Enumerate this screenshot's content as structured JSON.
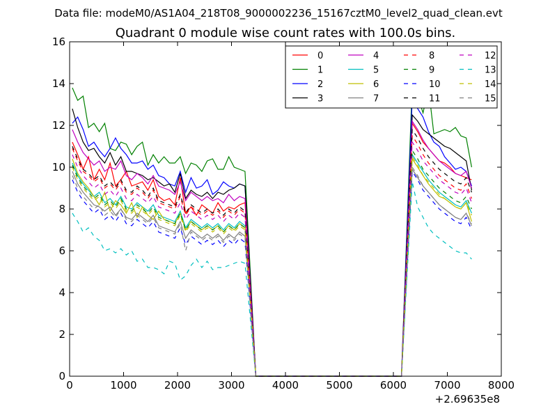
{
  "chart_data": {
    "type": "line",
    "suptitle": "Data file: modeM0/AS1A04_218T08_9000002236_15167cztM0_level2_quad_clean.evt",
    "title": "Quadrant 0 module wise count rates with 100.0s bins.",
    "xlabel": "",
    "ylabel": "",
    "xlim": [
      0,
      8000
    ],
    "ylim": [
      0,
      16
    ],
    "x_offset_label": "+2.69635e8",
    "xticks": [
      0,
      1000,
      2000,
      3000,
      4000,
      5000,
      6000,
      7000,
      8000
    ],
    "xtick_labels": [
      "0",
      "1000",
      "2000",
      "3000",
      "4000",
      "5000",
      "6000",
      "7000",
      "8000"
    ],
    "yticks": [
      0,
      2,
      4,
      6,
      8,
      10,
      12,
      14,
      16
    ],
    "ytick_labels": [
      "0",
      "2",
      "4",
      "6",
      "8",
      "10",
      "12",
      "14",
      "16"
    ],
    "legend_position": "top-right",
    "legend_columns": 4,
    "x_segment1_start": 50,
    "x_step": 100,
    "gap_x": [
      3450,
      6150
    ],
    "x_segment2_start": 6350,
    "series": [
      {
        "name": "0",
        "color": "#ff0000",
        "dashed": false,
        "seg1": [
          11.2,
          10.6,
          9.9,
          10.5,
          9.4,
          9.9,
          9.4,
          10.2,
          9.1,
          9.4,
          9.8,
          9.1,
          9.2,
          9.3,
          8.9,
          9.4,
          8.6,
          8.4,
          8.5,
          8.2,
          9.5,
          7.8,
          8.1,
          7.7,
          8.2,
          8.0,
          7.8,
          8.3,
          7.9,
          8.1,
          8.0,
          8.2,
          8.3
        ],
        "seg2": [
          12.1,
          11.7,
          11.2,
          10.9,
          10.6,
          10.3,
          10.2,
          10.0,
          9.7,
          9.6,
          9.5,
          9.4
        ]
      },
      {
        "name": "1",
        "color": "#008000",
        "dashed": false,
        "seg1": [
          13.8,
          13.2,
          13.4,
          11.9,
          12.1,
          11.7,
          12.1,
          10.9,
          10.8,
          11.2,
          11.1,
          10.6,
          11.0,
          11.2,
          10.1,
          10.6,
          10.2,
          10.5,
          10.2,
          10.2,
          10.5,
          9.7,
          10.2,
          10.1,
          9.8,
          10.3,
          10.4,
          9.9,
          9.9,
          10.5,
          10.0,
          9.9,
          9.8
        ],
        "seg2": [
          14.0,
          13.4,
          12.6,
          13.8,
          11.6,
          11.7,
          11.8,
          11.7,
          11.9,
          11.5,
          11.4,
          10.0
        ]
      },
      {
        "name": "2",
        "color": "#0000ff",
        "dashed": false,
        "seg1": [
          12.1,
          12.4,
          11.8,
          11.0,
          11.2,
          10.8,
          10.5,
          10.9,
          11.4,
          10.9,
          10.6,
          10.2,
          10.2,
          10.3,
          9.9,
          10.1,
          9.6,
          9.5,
          9.2,
          9.1,
          9.8,
          8.8,
          9.5,
          9.0,
          9.1,
          9.4,
          8.7,
          8.9,
          9.3,
          9.1,
          9.0,
          9.2,
          9.1
        ],
        "seg2": [
          13.3,
          12.8,
          12.4,
          11.7,
          11.2,
          11.0,
          10.5,
          10.2,
          9.9,
          10.0,
          9.8,
          9.1
        ]
      },
      {
        "name": "3",
        "color": "#000000",
        "dashed": false,
        "seg1": [
          12.8,
          11.9,
          11.2,
          10.8,
          10.9,
          10.5,
          10.2,
          10.7,
          10.1,
          10.5,
          9.8,
          9.8,
          9.7,
          9.6,
          9.4,
          9.5,
          9.3,
          9.1,
          9.2,
          8.8,
          9.7,
          8.5,
          8.9,
          8.7,
          8.6,
          8.8,
          8.5,
          8.8,
          8.7,
          8.9,
          9.0,
          9.2,
          9.1
        ],
        "seg2": [
          12.5,
          12.2,
          11.8,
          11.6,
          11.4,
          11.2,
          11.0,
          10.9,
          10.7,
          10.5,
          10.3,
          8.9
        ]
      },
      {
        "name": "4",
        "color": "#bf00bf",
        "dashed": false,
        "seg1": [
          11.8,
          11.2,
          10.7,
          10.4,
          10.1,
          10.3,
          9.8,
          10.0,
          9.9,
          10.3,
          9.6,
          9.4,
          9.7,
          9.5,
          9.2,
          9.6,
          9.1,
          9.0,
          8.9,
          8.7,
          9.3,
          8.4,
          8.8,
          8.6,
          8.4,
          8.6,
          8.4,
          8.5,
          8.3,
          8.7,
          8.4,
          8.6,
          8.5
        ],
        "seg2": [
          12.2,
          11.8,
          11.3,
          10.9,
          10.6,
          10.3,
          10.1,
          9.9,
          9.7,
          9.6,
          9.8,
          9.0
        ]
      },
      {
        "name": "5",
        "color": "#00bfbf",
        "dashed": false,
        "seg1": [
          10.2,
          9.6,
          9.2,
          8.9,
          8.6,
          8.8,
          8.3,
          8.5,
          8.2,
          8.6,
          8.1,
          8.0,
          8.3,
          8.1,
          7.9,
          8.2,
          7.7,
          7.6,
          7.5,
          7.4,
          7.9,
          7.1,
          7.5,
          7.3,
          7.1,
          7.3,
          7.1,
          7.3,
          7.0,
          7.3,
          7.1,
          7.4,
          7.2
        ],
        "seg2": [
          10.6,
          10.2,
          9.8,
          9.4,
          9.1,
          8.8,
          8.6,
          8.4,
          8.2,
          8.1,
          8.4,
          7.8
        ]
      },
      {
        "name": "6",
        "color": "#bfbf00",
        "dashed": false,
        "seg1": [
          10.4,
          9.7,
          9.3,
          9.0,
          8.6,
          8.2,
          8.8,
          7.9,
          8.4,
          8.2,
          7.8,
          8.3,
          7.6,
          8.1,
          7.7,
          7.5,
          7.9,
          7.5,
          7.4,
          7.3,
          7.8,
          7.0,
          7.4,
          7.2,
          7.0,
          7.2,
          7.0,
          7.2,
          6.9,
          7.2,
          7.0,
          7.3,
          7.1
        ],
        "seg2": [
          10.4,
          10.0,
          9.6,
          9.2,
          8.9,
          8.6,
          8.5,
          8.3,
          8.1,
          8.0,
          8.3,
          7.4
        ]
      },
      {
        "name": "7",
        "color": "#808080",
        "dashed": false,
        "seg1": [
          9.8,
          9.2,
          8.8,
          8.5,
          8.2,
          8.1,
          7.9,
          8.1,
          7.7,
          8.0,
          7.6,
          7.5,
          7.8,
          7.6,
          7.4,
          7.7,
          7.2,
          7.1,
          7.0,
          6.9,
          7.4,
          6.6,
          7.0,
          6.8,
          6.6,
          6.8,
          6.6,
          6.8,
          6.5,
          6.8,
          6.6,
          6.9,
          6.7
        ],
        "seg2": [
          9.9,
          9.5,
          9.1,
          8.8,
          8.5,
          8.2,
          8.0,
          7.8,
          7.6,
          7.5,
          7.8,
          7.2
        ]
      },
      {
        "name": "8",
        "color": "#ff0000",
        "dashed": true,
        "seg1": [
          10.9,
          10.3,
          9.8,
          9.6,
          9.3,
          9.5,
          9.0,
          9.2,
          8.9,
          9.3,
          8.8,
          8.7,
          9.0,
          8.8,
          8.5,
          8.9,
          8.3,
          8.2,
          8.1,
          8.0,
          8.6,
          7.7,
          8.1,
          7.9,
          7.7,
          7.9,
          7.7,
          7.9,
          7.6,
          7.9,
          7.7,
          8.0,
          7.8
        ],
        "seg2": [
          11.5,
          11.1,
          10.6,
          10.2,
          9.9,
          9.6,
          9.4,
          9.2,
          9.0,
          8.9,
          9.2,
          8.5
        ]
      },
      {
        "name": "9",
        "color": "#008000",
        "dashed": true,
        "seg1": [
          10.1,
          9.5,
          9.1,
          8.8,
          8.5,
          8.7,
          8.2,
          8.4,
          8.1,
          8.5,
          8.0,
          7.9,
          8.2,
          8.0,
          7.8,
          8.1,
          7.6,
          7.5,
          7.4,
          7.3,
          7.8,
          7.0,
          7.4,
          7.2,
          7.0,
          7.2,
          7.0,
          7.2,
          6.9,
          7.2,
          7.0,
          7.3,
          7.1
        ],
        "seg2": [
          10.8,
          10.4,
          9.9,
          9.6,
          9.3,
          9.0,
          8.8,
          8.6,
          8.4,
          8.3,
          8.6,
          8.0
        ]
      },
      {
        "name": "10",
        "color": "#0000ff",
        "dashed": true,
        "seg1": [
          9.4,
          8.8,
          8.4,
          8.1,
          7.8,
          8.0,
          7.5,
          7.7,
          7.4,
          7.8,
          7.3,
          7.2,
          7.5,
          7.3,
          7.1,
          7.4,
          6.9,
          6.8,
          6.7,
          6.6,
          7.1,
          6.3,
          6.7,
          6.5,
          6.3,
          6.5,
          6.3,
          6.5,
          6.2,
          6.5,
          6.3,
          6.6,
          6.4
        ],
        "seg2": [
          9.8,
          9.4,
          8.9,
          8.6,
          8.3,
          8.0,
          7.8,
          7.6,
          7.4,
          7.3,
          7.6,
          7.0
        ]
      },
      {
        "name": "11",
        "color": "#000000",
        "dashed": true,
        "seg1": [
          11.0,
          10.4,
          9.9,
          9.7,
          9.4,
          9.6,
          9.1,
          9.3,
          9.0,
          9.4,
          8.9,
          8.8,
          9.1,
          8.9,
          8.6,
          9.0,
          8.4,
          8.3,
          8.2,
          8.1,
          8.7,
          7.8,
          8.2,
          8.0,
          7.8,
          8.0,
          7.8,
          8.0,
          7.7,
          8.0,
          7.8,
          8.1,
          7.9
        ],
        "seg2": [
          11.8,
          11.4,
          10.9,
          10.5,
          10.2,
          9.9,
          9.7,
          9.5,
          9.3,
          9.2,
          9.5,
          8.8
        ]
      },
      {
        "name": "12",
        "color": "#bf00bf",
        "dashed": true,
        "seg1": [
          10.6,
          10.0,
          9.6,
          9.3,
          9.0,
          9.2,
          8.7,
          8.9,
          8.6,
          9.0,
          8.5,
          8.4,
          8.7,
          8.5,
          8.3,
          8.6,
          8.1,
          8.0,
          7.9,
          7.8,
          8.3,
          7.5,
          7.9,
          7.7,
          7.5,
          7.7,
          7.5,
          7.7,
          7.4,
          7.7,
          7.5,
          7.8,
          7.6
        ],
        "seg2": [
          11.2,
          10.8,
          10.3,
          10.0,
          9.7,
          9.4,
          9.2,
          9.0,
          8.8,
          8.7,
          9.0,
          8.3
        ]
      },
      {
        "name": "13",
        "color": "#00bfbf",
        "dashed": true,
        "seg1": [
          7.8,
          7.4,
          6.9,
          7.1,
          6.7,
          6.5,
          6.0,
          6.1,
          5.9,
          6.1,
          5.8,
          6.0,
          5.5,
          5.6,
          5.2,
          5.2,
          5.1,
          4.9,
          5.5,
          5.4,
          4.6,
          4.8,
          5.3,
          5.6,
          5.2,
          5.5,
          5.1,
          5.2,
          5.2,
          5.3,
          5.4,
          5.5,
          5.4
        ],
        "seg2": [
          9.3,
          8.1,
          7.6,
          7.1,
          6.8,
          6.6,
          6.4,
          6.2,
          6.0,
          5.9,
          5.9,
          5.6
        ]
      },
      {
        "name": "14",
        "color": "#bfbf00",
        "dashed": true,
        "seg1": [
          10.0,
          9.4,
          9.0,
          8.7,
          8.4,
          8.6,
          8.1,
          8.3,
          8.0,
          8.4,
          7.9,
          7.8,
          8.1,
          7.9,
          7.7,
          8.0,
          7.5,
          7.4,
          7.3,
          7.2,
          7.7,
          6.9,
          7.3,
          7.1,
          6.9,
          7.1,
          6.9,
          7.1,
          6.8,
          7.1,
          6.9,
          7.2,
          7.0
        ],
        "seg2": [
          10.5,
          10.1,
          9.6,
          9.3,
          9.0,
          8.7,
          8.5,
          8.3,
          8.1,
          8.0,
          8.3,
          7.7
        ]
      },
      {
        "name": "15",
        "color": "#808080",
        "dashed": true,
        "seg1": [
          9.6,
          9.0,
          8.6,
          8.3,
          8.0,
          8.2,
          7.7,
          7.9,
          7.6,
          8.0,
          7.5,
          7.4,
          7.7,
          7.5,
          7.3,
          7.6,
          7.1,
          7.0,
          6.9,
          6.8,
          7.3,
          6.0,
          6.9,
          6.7,
          6.5,
          6.7,
          6.5,
          6.7,
          6.4,
          6.7,
          6.5,
          6.8,
          6.6
        ],
        "seg2": [
          10.0,
          9.6,
          9.1,
          8.8,
          8.5,
          8.2,
          8.0,
          7.8,
          7.6,
          7.5,
          7.8,
          7.3
        ]
      }
    ]
  }
}
